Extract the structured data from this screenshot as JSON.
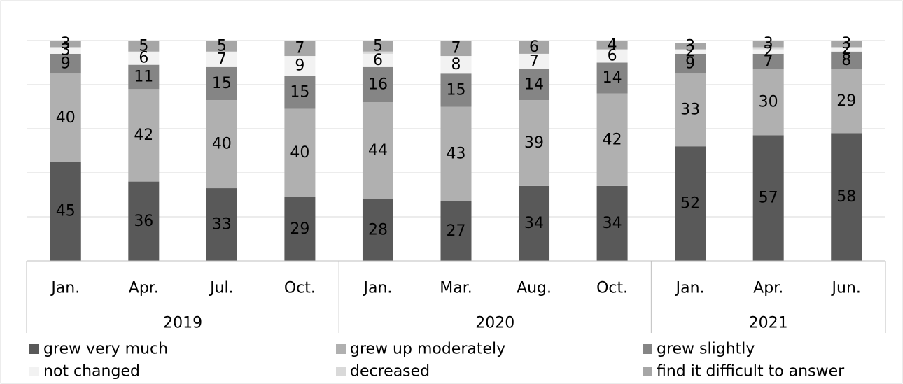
{
  "chart_data": {
    "type": "bar",
    "stacked": true,
    "title": "",
    "xlabel": "",
    "ylabel": "",
    "ylim": [
      0,
      100
    ],
    "grid": true,
    "legend_position": "bottom",
    "categories": [
      "Jan.",
      "Apr.",
      "Jul.",
      "Oct.",
      "Jan.",
      "Mar.",
      "Aug.",
      "Oct.",
      "Jan.",
      "Apr.",
      "Jun."
    ],
    "groups": [
      {
        "label": "2019",
        "count": 4
      },
      {
        "label": "2020",
        "count": 4
      },
      {
        "label": "2021",
        "count": 3
      }
    ],
    "series": [
      {
        "name": "grew very much",
        "color": "#595959",
        "values": [
          45,
          36,
          33,
          29,
          28,
          27,
          34,
          34,
          52,
          57,
          58
        ]
      },
      {
        "name": "grew up moderately",
        "color": "#b0b0b0",
        "values": [
          40,
          42,
          40,
          40,
          44,
          43,
          39,
          42,
          33,
          30,
          29
        ]
      },
      {
        "name": "grew slightly",
        "color": "#858585",
        "values": [
          9,
          11,
          15,
          15,
          16,
          15,
          14,
          14,
          9,
          7,
          8
        ]
      },
      {
        "name": "not changed",
        "color": "#f2f2f2",
        "values": [
          3,
          6,
          7,
          9,
          6,
          8,
          7,
          6,
          2,
          2,
          2
        ]
      },
      {
        "name": "decreased",
        "color": "#d9d9d9",
        "values": [
          0,
          0,
          0,
          0,
          1,
          0,
          0,
          0,
          0,
          1,
          0
        ]
      },
      {
        "name": "find it difficult to answer",
        "color": "#a6a6a6",
        "values": [
          3,
          5,
          5,
          7,
          5,
          7,
          6,
          4,
          3,
          3,
          3
        ]
      }
    ],
    "hidden_labels": [
      {
        "series": 4
      }
    ]
  }
}
